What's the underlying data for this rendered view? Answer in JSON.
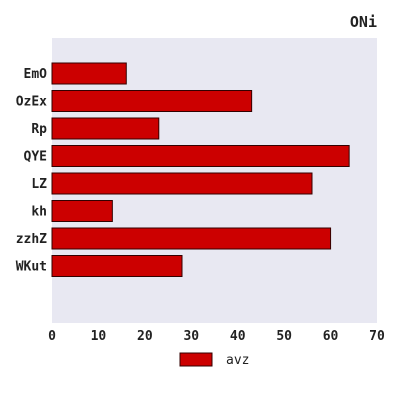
{
  "chart_data": {
    "type": "bar",
    "orientation": "horizontal",
    "title": "ONi",
    "xlabel": "",
    "ylabel": "",
    "categories": [
      "EmO",
      "OzEx",
      "Rp",
      "QYE",
      "LZ",
      "kh",
      "zzhZ",
      "WKut"
    ],
    "series": [
      {
        "name": "avz",
        "values": [
          16,
          43,
          23,
          64,
          56,
          13,
          60,
          28
        ],
        "color": "#cc0000"
      }
    ],
    "xlim": [
      0,
      70
    ],
    "xticks": [
      0,
      10,
      20,
      30,
      40,
      50,
      60,
      70
    ],
    "grid": false,
    "legend_position": "bottom-center",
    "plot_background": "#e8e8f2",
    "bar_edge_color": "#330000"
  }
}
